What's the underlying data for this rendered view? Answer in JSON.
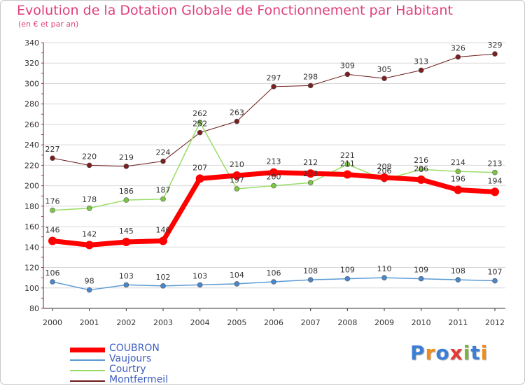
{
  "title": "Evolution de la Dotation Globale de Fonctionnement par Habitant",
  "subtitle": "(en € et par an)",
  "logo": {
    "text": "Proxiti",
    "letters": [
      "P",
      "r",
      "o",
      "x",
      "i",
      "t",
      "i"
    ],
    "colors": [
      "#3a7fd5",
      "#f08c1a",
      "#3a7fd5",
      "#e53935",
      "#7cb342",
      "#3a7fd5",
      "#f08c1a"
    ]
  },
  "chart_data": {
    "type": "line",
    "title": "Evolution de la Dotation Globale de Fonctionnement par Habitant",
    "subtitle": "(en € et par an)",
    "xlabel": "",
    "ylabel": "",
    "x": [
      2000,
      2001,
      2002,
      2003,
      2004,
      2005,
      2006,
      2007,
      2008,
      2009,
      2010,
      2011,
      2012
    ],
    "ylim": [
      80,
      340
    ],
    "yticks": [
      80,
      100,
      120,
      140,
      160,
      180,
      200,
      220,
      240,
      260,
      280,
      300,
      320,
      340
    ],
    "grid": "horizontal",
    "legend": "bottom-left",
    "series": [
      {
        "name": "Montfermeil",
        "color": "#6b1a1a",
        "markerColor": "#7a1f1f",
        "lineWidth": 1,
        "markerRadius": 3.5,
        "values": [
          227,
          220,
          219,
          224,
          252,
          263,
          297,
          298,
          309,
          305,
          313,
          326,
          329
        ]
      },
      {
        "name": "Vaujours",
        "color": "#5b9bd5",
        "markerColor": "#4a86c8",
        "lineWidth": 1.5,
        "markerRadius": 3.5,
        "values": [
          106,
          98,
          103,
          102,
          103,
          104,
          106,
          108,
          109,
          110,
          109,
          108,
          107
        ]
      },
      {
        "name": "Courtry",
        "color": "#99dd66",
        "markerColor": "#7cc644",
        "lineWidth": 1.5,
        "markerRadius": 3.5,
        "values": [
          176,
          178,
          186,
          187,
          262,
          197,
          200,
          203,
          221,
          206,
          216,
          214,
          213
        ]
      },
      {
        "name": "COUBRON",
        "color": "#ff0000",
        "markerColor": "#ff0000",
        "lineWidth": 7,
        "markerRadius": 6,
        "values": [
          146,
          142,
          145,
          146,
          207,
          210,
          213,
          212,
          211,
          208,
          206,
          196,
          194
        ]
      }
    ],
    "legend_order": [
      "COUBRON",
      "Vaujours",
      "Courtry",
      "Montfermeil"
    ]
  }
}
